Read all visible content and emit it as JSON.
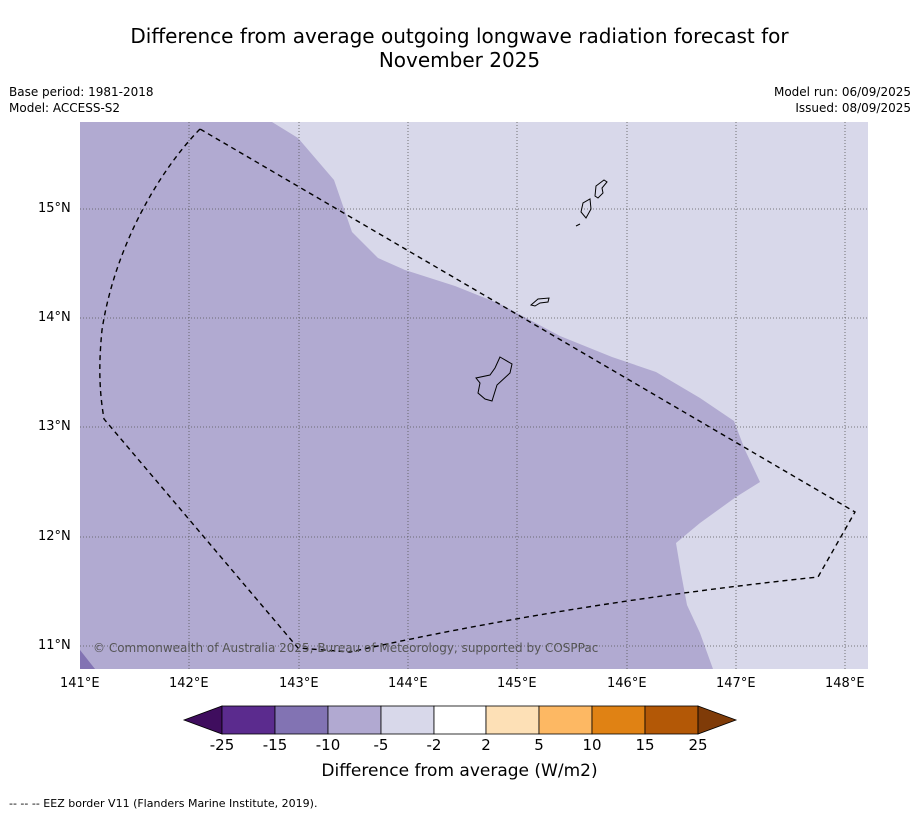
{
  "title_line1": "Difference from average outgoing longwave radiation forecast for",
  "title_line2": "November 2025",
  "base_period": "Base period: 1981-2018",
  "model": "Model: ACCESS-S2",
  "model_run": "Model run: 06/09/2025",
  "issued": "Issued: 08/09/2025",
  "copyright": "© Commonwealth of Australia 2025, Bureau of Meteorology, supported by COSPPac",
  "footnote": "--  --  -- EEZ border V11 (Flanders Marine Institute, 2019).",
  "lon_labels": [
    "141°E",
    "142°E",
    "143°E",
    "144°E",
    "145°E",
    "146°E",
    "147°E",
    "148°E"
  ],
  "lat_labels": [
    "15°N",
    "14°N",
    "13°N",
    "12°N",
    "11°N"
  ],
  "colorbar": {
    "title": "Difference from average (W/m2)",
    "tick_labels": [
      "-25",
      "-15",
      "-10",
      "-5",
      "-2",
      "2",
      "5",
      "10",
      "15",
      "25"
    ],
    "colors": [
      "#3f0d5e",
      "#5b2b8e",
      "#8273b3",
      "#b1a9d1",
      "#d8d8ea",
      "#ffffff",
      "#fde0b6",
      "#fdb863",
      "#e08214",
      "#b35806",
      "#7f3b08"
    ]
  },
  "map_colors": {
    "band_minus10_minus5": "#b1aad1",
    "band_minus5_minus2": "#d8d8ea",
    "band_minus15_minus10": "#8273b3"
  }
}
